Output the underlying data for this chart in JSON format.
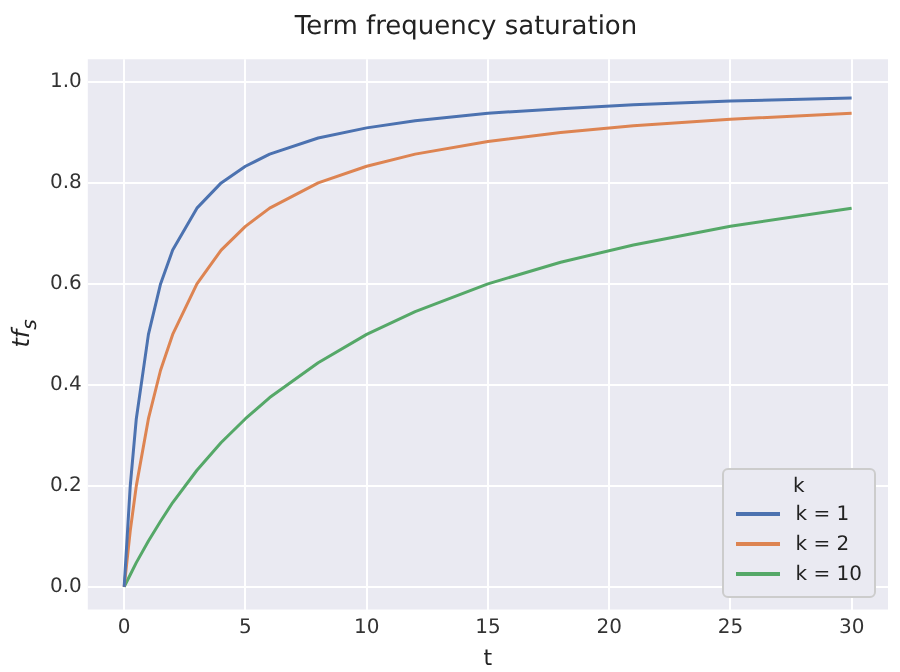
{
  "chart_data": {
    "type": "line",
    "title": "Term frequency saturation",
    "xlabel": "t",
    "ylabel": "tf$_{s}$",
    "legend_title": "k",
    "x": [
      0,
      0.25,
      0.5,
      1,
      1.5,
      2,
      3,
      4,
      5,
      6,
      8,
      10,
      12,
      15,
      18,
      21,
      25,
      30
    ],
    "series": [
      {
        "name": "k = 1",
        "color": "#4c72b0",
        "values": [
          0,
          0.2,
          0.333,
          0.5,
          0.6,
          0.667,
          0.75,
          0.8,
          0.833,
          0.857,
          0.889,
          0.909,
          0.923,
          0.938,
          0.947,
          0.955,
          0.962,
          0.968
        ]
      },
      {
        "name": "k = 2",
        "color": "#dd8452",
        "values": [
          0,
          0.111,
          0.2,
          0.333,
          0.429,
          0.5,
          0.6,
          0.667,
          0.714,
          0.75,
          0.8,
          0.833,
          0.857,
          0.882,
          0.9,
          0.913,
          0.926,
          0.938
        ]
      },
      {
        "name": "k = 10",
        "color": "#55a868",
        "values": [
          0,
          0.024,
          0.048,
          0.091,
          0.13,
          0.167,
          0.231,
          0.286,
          0.333,
          0.375,
          0.444,
          0.5,
          0.545,
          0.6,
          0.643,
          0.677,
          0.714,
          0.75
        ]
      }
    ],
    "xlim": [
      -1.5,
      31.5
    ],
    "xticks": [
      0,
      5,
      10,
      15,
      20,
      25,
      30
    ],
    "ylim": [
      -0.045,
      1.045
    ],
    "yticks": [
      {
        "value": 0,
        "label": "0.0"
      },
      {
        "value": 0.2,
        "label": "0.2"
      },
      {
        "value": 0.4,
        "label": "0.4"
      },
      {
        "value": 0.6,
        "label": "0.6"
      },
      {
        "value": 0.8,
        "label": "0.8"
      },
      {
        "value": 1,
        "label": "1.0"
      }
    ],
    "grid": true,
    "legend": "bottom right",
    "marker": "none",
    "line_style": "solid"
  }
}
